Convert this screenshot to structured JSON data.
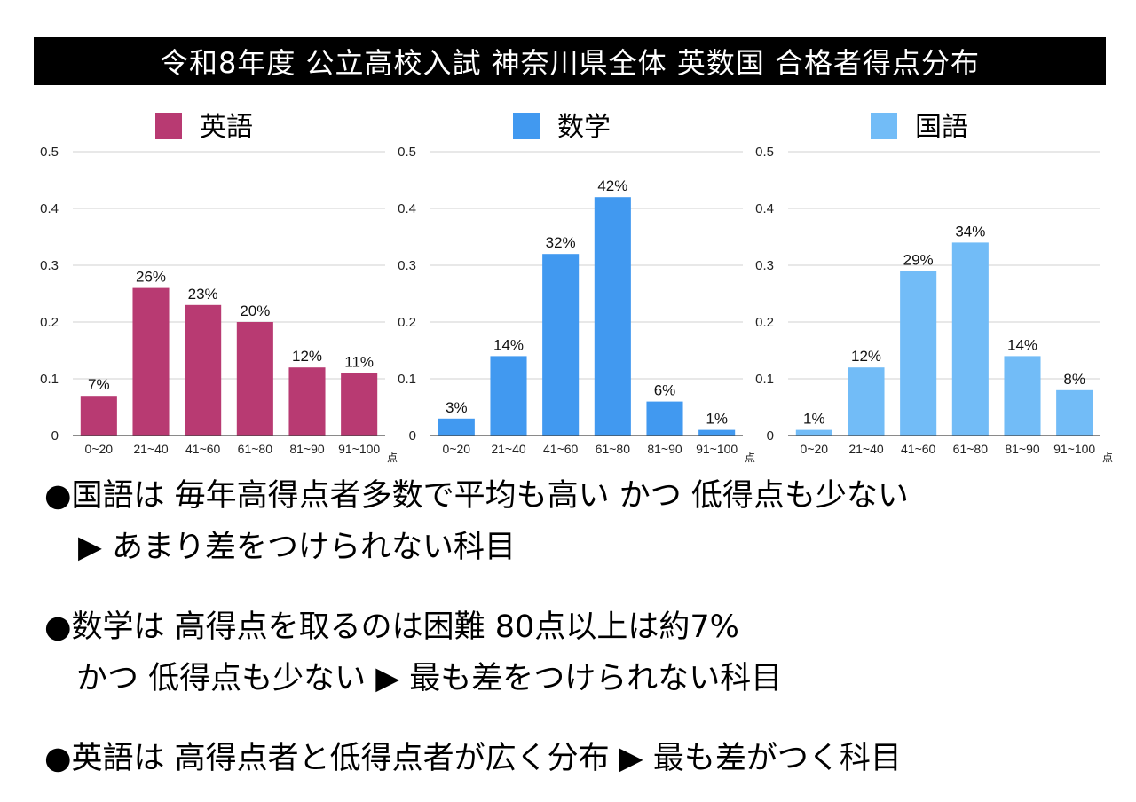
{
  "title": "令和8年度 公立高校入試 神奈川県全体 英数国 合格者得点分布",
  "chart_data": [
    {
      "type": "bar",
      "legend": "英語",
      "color": "#b83a72",
      "categories": [
        "0~20",
        "21~40",
        "41~60",
        "61~80",
        "81~90",
        "91~100"
      ],
      "values": [
        0.07,
        0.26,
        0.23,
        0.2,
        0.12,
        0.11
      ],
      "data_labels": [
        "7%",
        "26%",
        "23%",
        "20%",
        "12%",
        "11%"
      ],
      "yticks": [
        "0",
        "0.1",
        "0.2",
        "0.3",
        "0.4",
        "0.5"
      ],
      "ylim": [
        0,
        0.5
      ],
      "unit": "点",
      "grid": true,
      "legend_position": "top"
    },
    {
      "type": "bar",
      "legend": "数学",
      "color": "#4199f0",
      "categories": [
        "0~20",
        "21~40",
        "41~60",
        "61~80",
        "81~90",
        "91~100"
      ],
      "values": [
        0.03,
        0.14,
        0.32,
        0.42,
        0.06,
        0.01
      ],
      "data_labels": [
        "3%",
        "14%",
        "32%",
        "42%",
        "6%",
        "1%"
      ],
      "yticks": [
        "0",
        "0.1",
        "0.2",
        "0.3",
        "0.4",
        "0.5"
      ],
      "ylim": [
        0,
        0.5
      ],
      "unit": "点",
      "grid": true,
      "legend_position": "top"
    },
    {
      "type": "bar",
      "legend": "国語",
      "color": "#72bcf7",
      "categories": [
        "0~20",
        "21~40",
        "41~60",
        "61~80",
        "81~90",
        "91~100"
      ],
      "values": [
        0.01,
        0.12,
        0.29,
        0.34,
        0.14,
        0.08
      ],
      "data_labels": [
        "1%",
        "12%",
        "29%",
        "34%",
        "14%",
        "8%"
      ],
      "yticks": [
        "0",
        "0.1",
        "0.2",
        "0.3",
        "0.4",
        "0.5"
      ],
      "ylim": [
        0,
        0.5
      ],
      "unit": "点",
      "grid": true,
      "legend_position": "top"
    }
  ],
  "bullets": [
    "●国語は 毎年高得点者多数で平均も高い かつ 低得点も少ない",
    "▶ あまり差をつけられない科目",
    "●数学は 高得点を取るのは困難 80点以上は約7%",
    "かつ 低得点も少ない ▶ 最も差をつけられない科目",
    "●英語は 高得点者と低得点者が広く分布 ▶ 最も差がつく科目"
  ]
}
